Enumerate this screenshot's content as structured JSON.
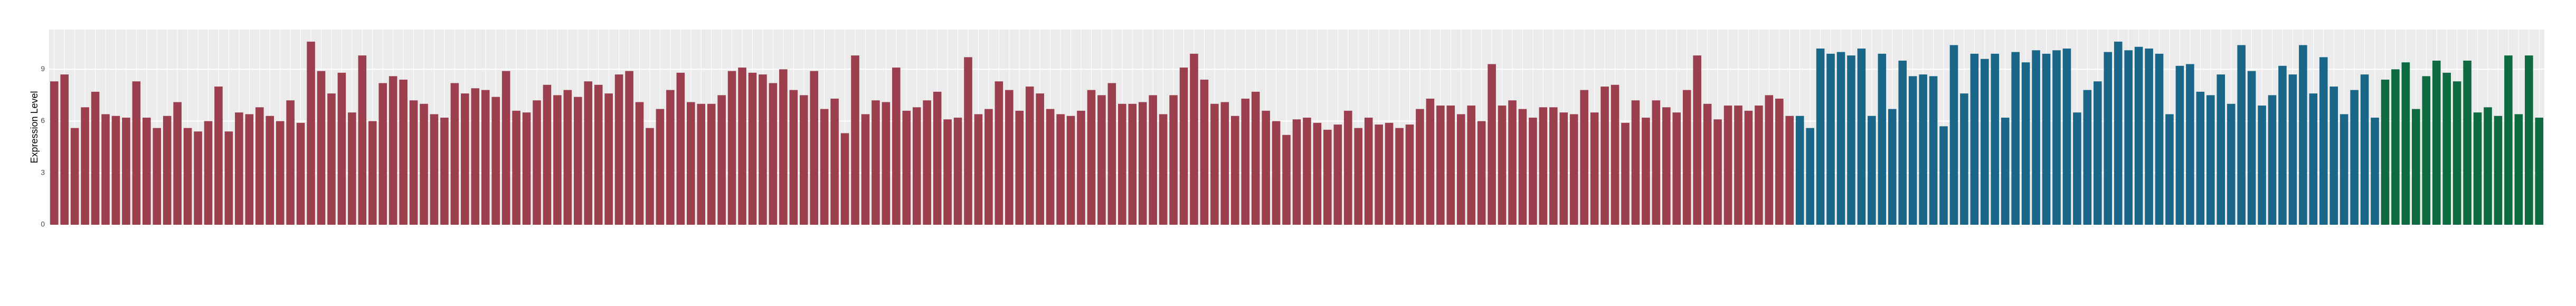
{
  "chart_data": {
    "type": "bar",
    "y_label": "Expression Level",
    "ylim": [
      0,
      11.3
    ],
    "yticks": [
      0,
      3,
      6,
      9
    ],
    "grid": true,
    "series": [
      {
        "color": "#9b3e4d",
        "values": [
          8.3,
          8.7,
          5.6,
          6.8,
          7.7,
          6.4,
          6.3,
          6.2,
          8.3,
          6.2,
          5.6,
          6.3,
          7.1,
          5.6,
          5.4,
          6.0,
          8.0,
          5.4,
          6.5,
          6.4,
          6.8,
          6.3,
          6.0,
          7.2,
          5.9,
          10.6,
          8.9,
          7.6,
          8.8,
          6.5,
          9.8,
          6.0,
          8.2,
          8.6,
          8.4,
          7.2,
          7.0,
          6.4,
          6.2,
          8.2,
          7.6,
          7.9,
          7.8,
          7.4,
          8.9,
          6.6,
          6.5,
          7.2,
          8.1,
          7.5,
          7.8,
          7.4,
          8.3,
          8.1,
          7.6,
          8.7,
          8.9,
          7.1,
          5.6,
          6.7,
          7.8,
          8.8,
          7.1,
          7.0,
          7.0,
          7.5,
          8.9,
          9.1,
          8.8,
          8.7,
          8.2,
          9.0,
          7.8,
          7.5,
          8.9,
          6.7,
          7.3,
          5.3,
          9.8,
          6.4,
          7.2,
          7.1,
          9.1,
          6.6,
          6.8,
          7.2,
          7.7,
          6.1,
          6.2,
          9.7,
          6.4,
          6.7,
          8.3,
          7.8,
          6.6,
          8.0,
          7.6,
          6.7,
          6.4,
          6.3,
          6.6,
          7.8,
          7.5,
          8.2,
          7.0,
          7.0,
          7.1,
          7.5,
          6.4,
          7.5,
          9.1,
          9.9,
          8.4,
          7.0,
          7.1,
          6.3,
          7.3,
          7.7,
          6.6,
          6.0,
          5.2,
          6.1,
          6.2,
          5.9,
          5.5,
          5.8,
          6.6,
          5.6,
          6.2,
          5.8,
          5.9,
          5.6,
          5.8,
          6.7,
          7.3,
          6.9,
          6.9,
          6.4,
          6.9,
          6.0,
          9.3,
          6.9,
          7.2,
          6.7,
          6.2,
          6.8,
          6.8,
          6.5,
          6.4,
          7.8,
          6.5,
          8.0,
          8.1,
          5.9,
          7.2,
          6.2,
          7.2,
          6.8,
          6.5,
          7.8,
          9.8,
          7.0,
          6.1,
          6.9,
          6.9,
          6.6,
          6.9,
          7.5,
          7.3,
          6.3
        ]
      },
      {
        "color": "#1a6688",
        "values": [
          6.3,
          5.6,
          10.2,
          9.9,
          10.0,
          9.8,
          10.2,
          6.3,
          9.9,
          6.7,
          9.5,
          8.6,
          8.7,
          8.6,
          5.7,
          10.4,
          7.6,
          9.9,
          9.6,
          9.9,
          6.2,
          10.0,
          9.4,
          10.1,
          9.9,
          10.1,
          10.2,
          6.5,
          7.8,
          8.3,
          10.0,
          10.6,
          10.1,
          10.3,
          10.2,
          9.9,
          6.4,
          9.2,
          9.3,
          7.7,
          7.5,
          8.7,
          7.0,
          10.4,
          8.9,
          6.9,
          7.5,
          9.2,
          8.7,
          10.4,
          7.6,
          9.7,
          8.0,
          6.4,
          7.8,
          8.7,
          6.2
        ]
      },
      {
        "color": "#0e6a40",
        "values": [
          8.4,
          9.0,
          9.4,
          6.7,
          8.6,
          9.5,
          8.8,
          8.3,
          9.5,
          6.5,
          6.8,
          6.3,
          9.8,
          6.4,
          9.8,
          6.2
        ]
      }
    ]
  }
}
